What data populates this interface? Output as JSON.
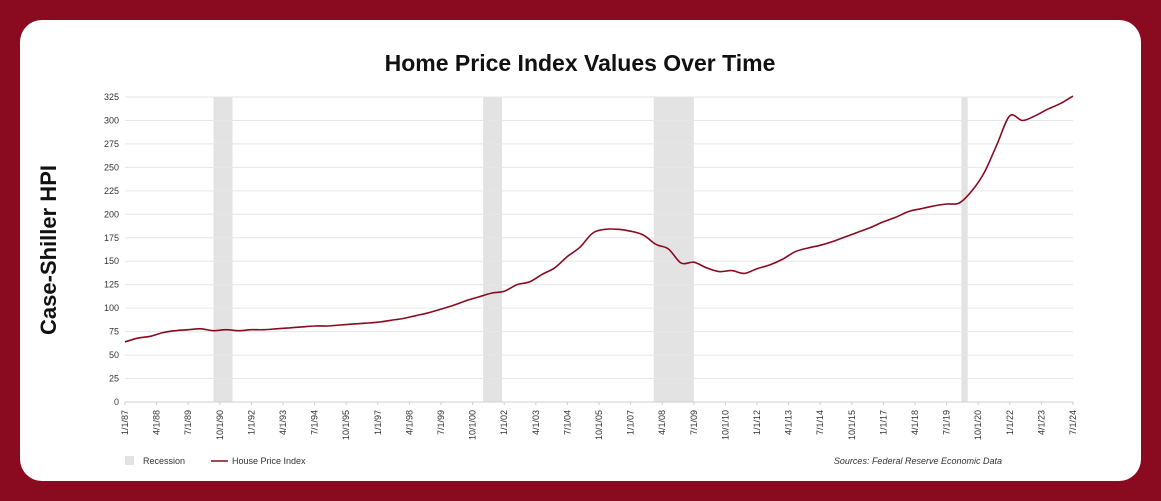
{
  "chart_data": {
    "type": "line",
    "title": "Home Price Index Values Over Time",
    "ylabel": "Case-Shiller HPI",
    "xlabel": "",
    "ylim": [
      0,
      325
    ],
    "yticks": [
      0,
      25,
      50,
      75,
      100,
      125,
      150,
      175,
      200,
      225,
      250,
      275,
      300,
      325
    ],
    "xticks": [
      "1/1/87",
      "4/1/88",
      "7/1/89",
      "10/1/90",
      "1/1/92",
      "4/1/93",
      "7/1/94",
      "10/1/95",
      "1/1/97",
      "4/1/98",
      "7/1/99",
      "10/1/00",
      "1/1/02",
      "4/1/03",
      "7/1/04",
      "10/1/05",
      "1/1/07",
      "4/1/08",
      "7/1/09",
      "10/1/10",
      "1/1/12",
      "4/1/13",
      "7/1/14",
      "10/1/15",
      "1/1/17",
      "4/1/18",
      "7/1/19",
      "10/1/20",
      "1/1/22",
      "4/1/23",
      "7/1/24"
    ],
    "xticks_shown": [
      "1/1/87",
      "4/1/88",
      "7/1/89",
      "10/1/90",
      "1/1/92",
      "4/1/93",
      "7/1/94",
      "10/1/95",
      "1/1/97",
      "4/1/98",
      "7/1/99",
      "10/1/00",
      "1/1/02",
      "4/1/03",
      "7/1/04",
      "10/1/05",
      "1/1/07",
      "4/1/08",
      "7/1/09",
      "10/1/10",
      "1/1/12",
      "4/1/13",
      "7/1/14",
      "10/1/15",
      "1/1/17",
      "4/1/18",
      "7/1/19",
      "10/1/20",
      "1/1/22",
      "4/1/23",
      "7/1/24"
    ],
    "grid": true,
    "legend_position": "bottom-left",
    "recessions": [
      {
        "start": "1990-07",
        "end": "1991-03"
      },
      {
        "start": "2001-03",
        "end": "2001-11"
      },
      {
        "start": "2007-12",
        "end": "2009-06"
      },
      {
        "start": "2020-02",
        "end": "2020-04"
      }
    ],
    "series": [
      {
        "name": "House Price Index",
        "color": "#8a0a20",
        "x": [
          "1987-01",
          "1987-07",
          "1988-01",
          "1988-07",
          "1989-01",
          "1989-07",
          "1990-01",
          "1990-07",
          "1991-01",
          "1991-07",
          "1992-01",
          "1992-07",
          "1993-01",
          "1993-07",
          "1994-01",
          "1994-07",
          "1995-01",
          "1995-07",
          "1996-01",
          "1996-07",
          "1997-01",
          "1997-07",
          "1998-01",
          "1998-07",
          "1999-01",
          "1999-07",
          "2000-01",
          "2000-07",
          "2001-01",
          "2001-07",
          "2002-01",
          "2002-07",
          "2003-01",
          "2003-07",
          "2004-01",
          "2004-07",
          "2005-01",
          "2005-07",
          "2006-01",
          "2006-07",
          "2007-01",
          "2007-07",
          "2008-01",
          "2008-07",
          "2009-01",
          "2009-07",
          "2010-01",
          "2010-07",
          "2011-01",
          "2011-07",
          "2012-01",
          "2012-07",
          "2013-01",
          "2013-07",
          "2014-01",
          "2014-07",
          "2015-01",
          "2015-07",
          "2016-01",
          "2016-07",
          "2017-01",
          "2017-07",
          "2018-01",
          "2018-07",
          "2019-01",
          "2019-07",
          "2020-01",
          "2020-07",
          "2021-01",
          "2021-07",
          "2022-01",
          "2022-07",
          "2023-01",
          "2023-07",
          "2024-01",
          "2024-07"
        ],
        "values": [
          64,
          68,
          70,
          74,
          76,
          77,
          78,
          76,
          77,
          76,
          77,
          77,
          78,
          79,
          80,
          81,
          81,
          82,
          83,
          84,
          85,
          87,
          89,
          92,
          95,
          99,
          103,
          108,
          112,
          116,
          118,
          125,
          128,
          136,
          143,
          155,
          165,
          180,
          184,
          184,
          182,
          178,
          168,
          163,
          148,
          149,
          143,
          139,
          140,
          137,
          142,
          146,
          152,
          160,
          164,
          167,
          171,
          176,
          181,
          186,
          192,
          197,
          203,
          206,
          209,
          211,
          212,
          225,
          245,
          275,
          305,
          300,
          305,
          312,
          318,
          326
        ]
      }
    ],
    "legend": [
      {
        "label": "Recession",
        "kind": "box",
        "color": "#e3e3e3"
      },
      {
        "label": "House Price Index",
        "kind": "line",
        "color": "#8a0a20"
      }
    ],
    "source": "Sources: Federal Reserve Economic Data"
  }
}
